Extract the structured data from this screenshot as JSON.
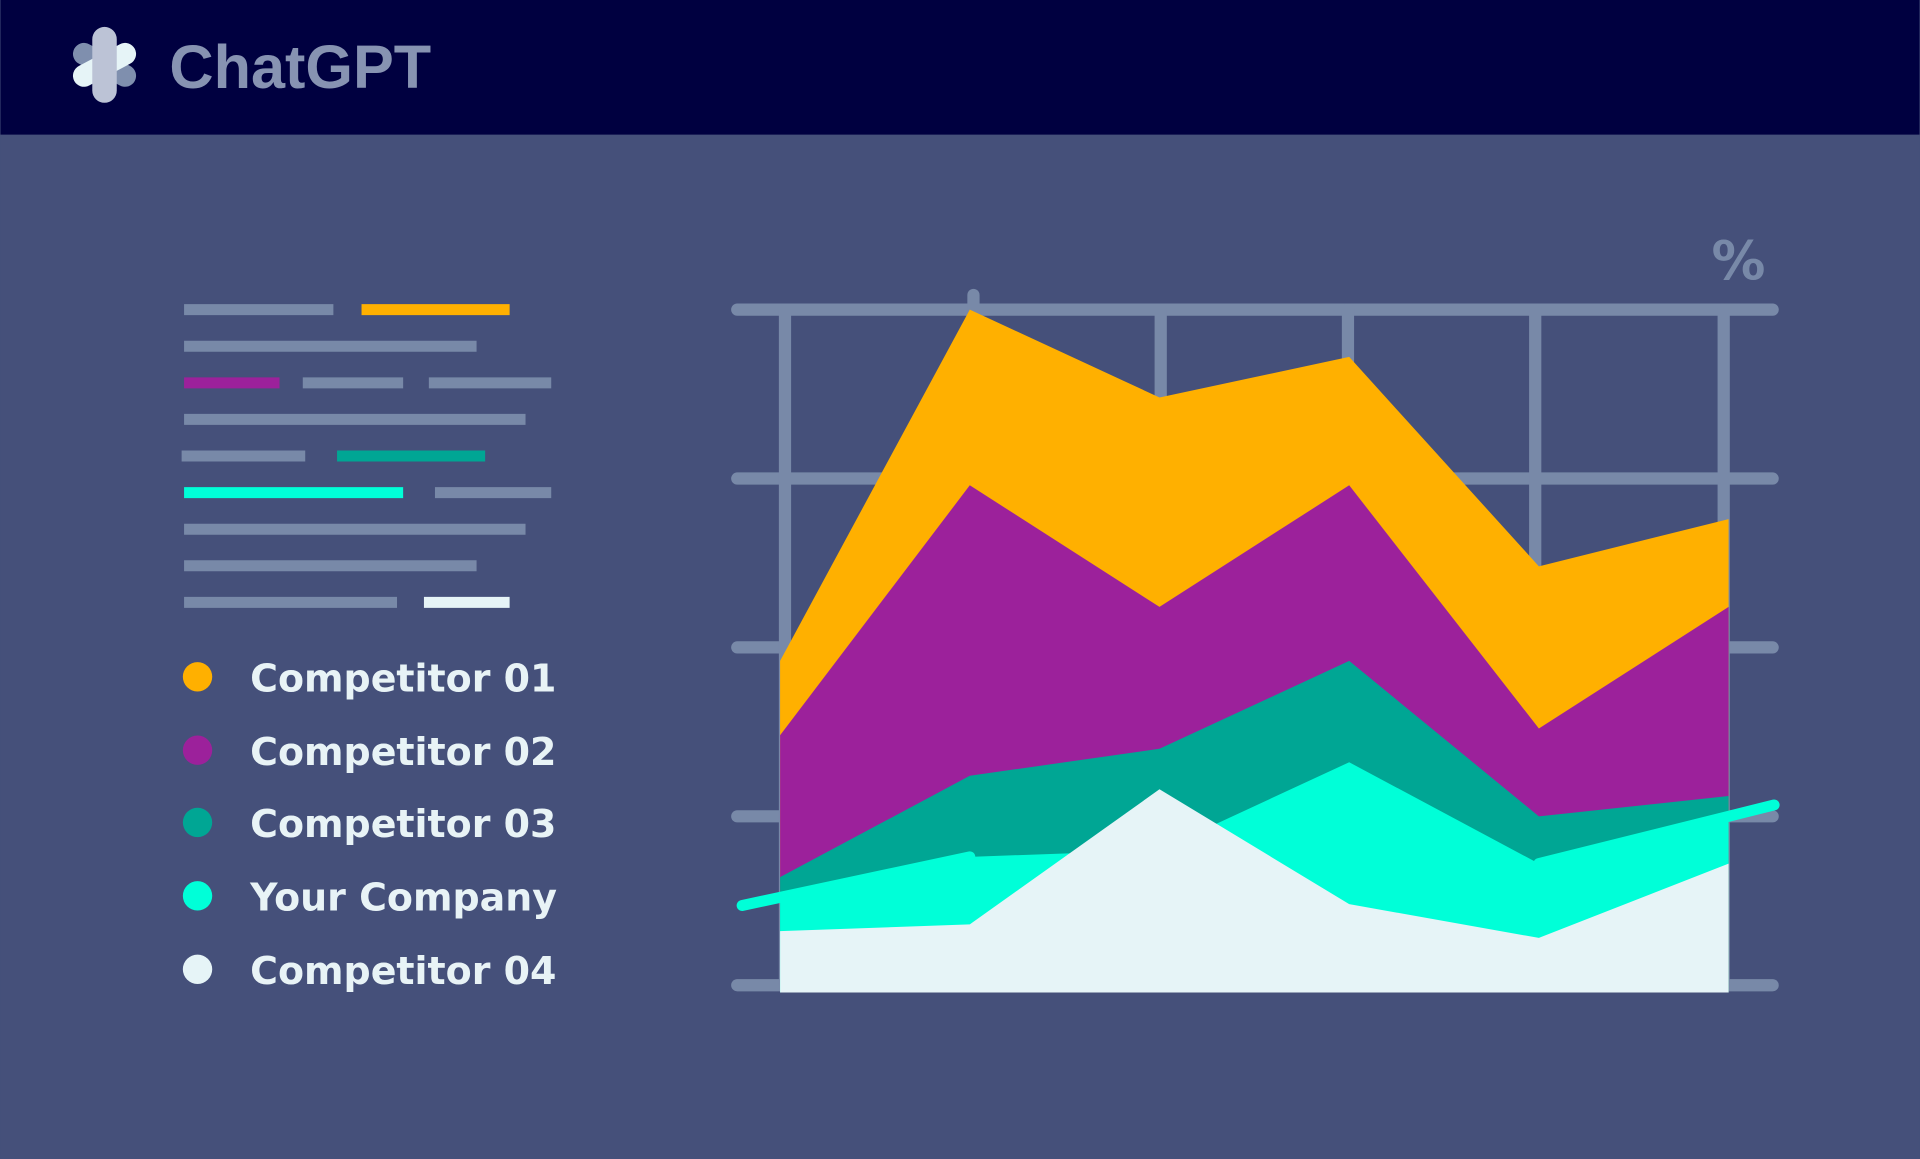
{
  "header": {
    "title": "ChatGPT",
    "logo_icon": "chatgpt-logo-icon",
    "background": "#000040"
  },
  "colors": {
    "background": "#45507a",
    "grid": "#7889a8",
    "text_line": "#7889a8"
  },
  "text_block": {
    "rows": [
      [
        {
          "len": 122,
          "color": "#7889a8"
        },
        {
          "len": 121,
          "color": "#ffb000"
        }
      ],
      [
        {
          "len": 239,
          "color": "#7889a8"
        }
      ],
      [
        {
          "len": 78,
          "color": "#9c219b"
        },
        {
          "len": 82,
          "color": "#7889a8"
        },
        {
          "len": 100,
          "color": "#7889a8"
        }
      ],
      [
        {
          "len": 279,
          "color": "#7889a8"
        }
      ],
      [
        {
          "len": 101,
          "color": "#7889a8"
        },
        {
          "len": 121,
          "color": "#00a694"
        }
      ],
      [
        {
          "len": 179,
          "color": "#00ffd8"
        },
        {
          "len": 95,
          "color": "#7889a8"
        }
      ],
      [
        {
          "len": 279,
          "color": "#7889a8"
        }
      ],
      [
        {
          "len": 239,
          "color": "#7889a8"
        }
      ],
      [
        {
          "len": 174,
          "color": "#7889a8"
        },
        {
          "len": 70,
          "color": "#e6f4f7"
        }
      ]
    ]
  },
  "legend": [
    {
      "label": "Competitor 01",
      "color": "#ffb000"
    },
    {
      "label": "Competitor 02",
      "color": "#9c219b"
    },
    {
      "label": "Competitor 03",
      "color": "#00a694"
    },
    {
      "label": "Your Company",
      "color": "#00ffd8"
    },
    {
      "label": "Competitor 04",
      "color": "#e6f4f7"
    }
  ],
  "chart_data": {
    "type": "area",
    "title": "",
    "xlabel": "",
    "ylabel": "%",
    "ylim": [
      0,
      100
    ],
    "grid": true,
    "legend_position": "left",
    "x": [
      1,
      2,
      3,
      4,
      5,
      6
    ],
    "series": [
      {
        "name": "Competitor 01",
        "color": "#ffb000",
        "values": [
          48,
          100,
          87,
          93,
          62,
          69
        ]
      },
      {
        "name": "Competitor 02",
        "color": "#9c219b",
        "values": [
          37,
          74,
          56,
          74,
          38,
          56
        ]
      },
      {
        "name": "Competitor 03",
        "color": "#00a694",
        "values": [
          16,
          31,
          35,
          48,
          25,
          28
        ]
      },
      {
        "name": "Your Company",
        "color": "#00ffd8",
        "values": [
          13,
          19,
          20,
          33,
          18,
          25
        ],
        "highlight_line": true
      },
      {
        "name": "Competitor 04",
        "color": "#e6f4f7",
        "values": [
          8,
          9,
          29,
          12,
          7,
          18
        ]
      }
    ]
  }
}
